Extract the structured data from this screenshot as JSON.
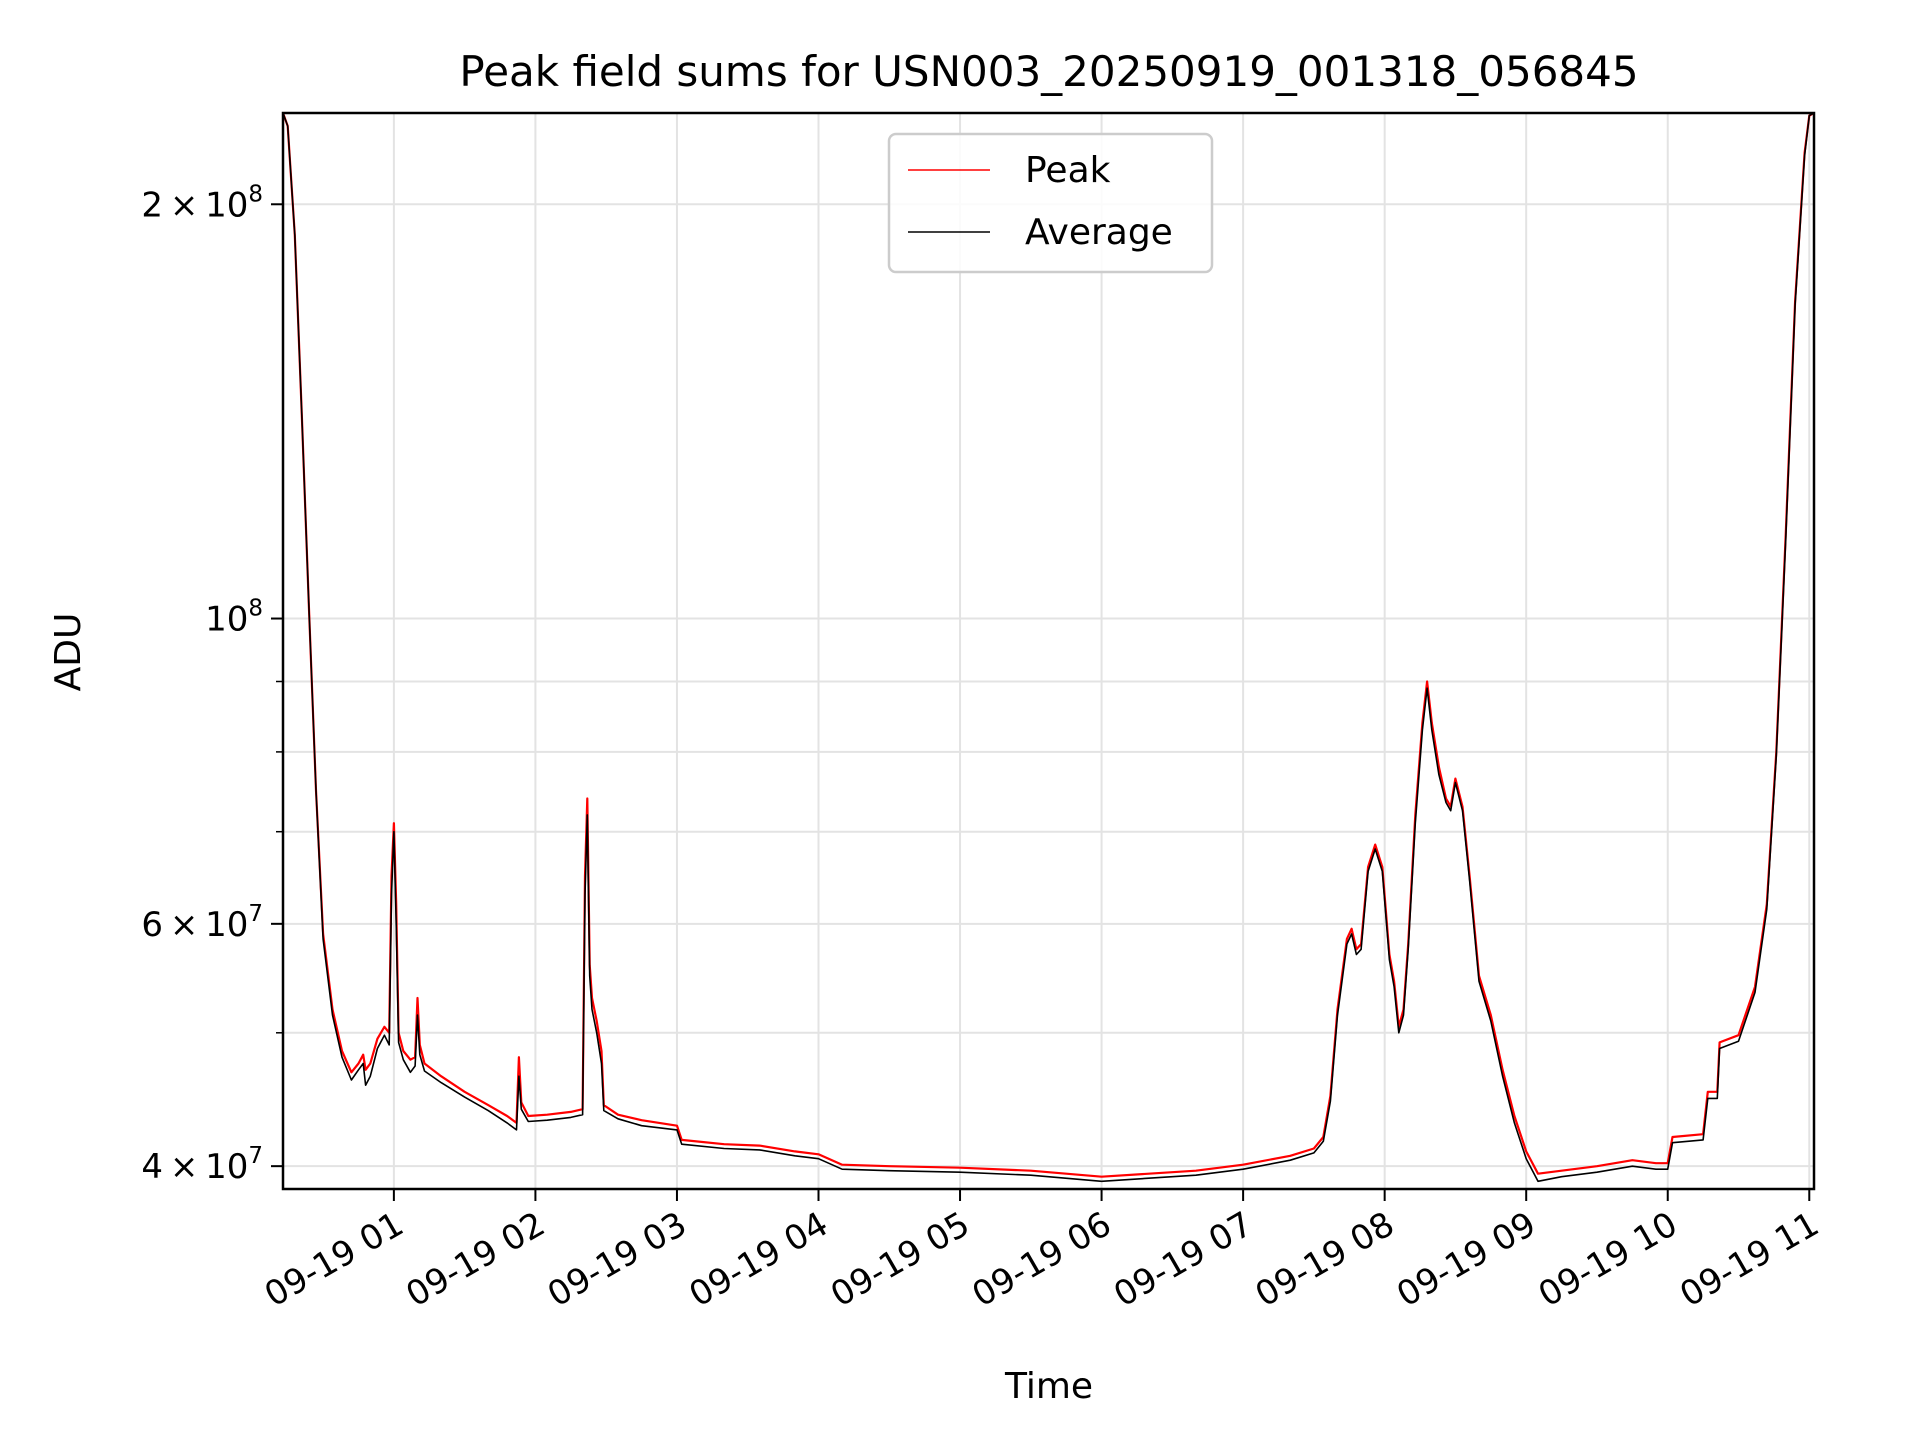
{
  "chart_data": {
    "type": "line",
    "title": "Peak field sums for USN003_20250919_001318_056845",
    "xlabel": "Time",
    "ylabel": "ADU",
    "y_scale": "log",
    "ylim": [
      38500000,
      233000000
    ],
    "xlim": [
      "2025-09-19 00:13",
      "2025-09-19 11:02"
    ],
    "grid": true,
    "legend_position": "upper center",
    "x_ticks": [
      {
        "t": "2025-09-19 01:00",
        "label": "09-19 01"
      },
      {
        "t": "2025-09-19 02:00",
        "label": "09-19 02"
      },
      {
        "t": "2025-09-19 03:00",
        "label": "09-19 03"
      },
      {
        "t": "2025-09-19 04:00",
        "label": "09-19 04"
      },
      {
        "t": "2025-09-19 05:00",
        "label": "09-19 05"
      },
      {
        "t": "2025-09-19 06:00",
        "label": "09-19 06"
      },
      {
        "t": "2025-09-19 07:00",
        "label": "09-19 07"
      },
      {
        "t": "2025-09-19 08:00",
        "label": "09-19 08"
      },
      {
        "t": "2025-09-19 09:00",
        "label": "09-19 09"
      },
      {
        "t": "2025-09-19 10:00",
        "label": "09-19 10"
      },
      {
        "t": "2025-09-19 11:00",
        "label": "09-19 11"
      }
    ],
    "y_major_ticks": [
      {
        "v": 40000000,
        "mant": "4",
        "exp": "7"
      },
      {
        "v": 60000000,
        "mant": "6",
        "exp": "7"
      },
      {
        "v": 100000000,
        "mant": "",
        "exp": "8"
      },
      {
        "v": 200000000,
        "mant": "2",
        "exp": "8"
      }
    ],
    "y_minor_ticks": [
      50000000,
      70000000,
      80000000,
      90000000
    ],
    "series": [
      {
        "name": "Peak",
        "color": "#ff0000",
        "points": [
          [
            "2025-09-19 00:13",
            233000000
          ],
          [
            "2025-09-19 00:15",
            228000000
          ],
          [
            "2025-09-19 00:18",
            190000000
          ],
          [
            "2025-09-19 00:21",
            140000000
          ],
          [
            "2025-09-19 00:24",
            102000000
          ],
          [
            "2025-09-19 00:27",
            75000000
          ],
          [
            "2025-09-19 00:30",
            59000000
          ],
          [
            "2025-09-19 00:34",
            52000000
          ],
          [
            "2025-09-19 00:38",
            48500000
          ],
          [
            "2025-09-19 00:42",
            46800000
          ],
          [
            "2025-09-19 00:45",
            47500000
          ],
          [
            "2025-09-19 00:47",
            48200000
          ],
          [
            "2025-09-19 00:48",
            47000000
          ],
          [
            "2025-09-19 00:50",
            47500000
          ],
          [
            "2025-09-19 00:53",
            49500000
          ],
          [
            "2025-09-19 00:56",
            50500000
          ],
          [
            "2025-09-19 00:58",
            50000000
          ],
          [
            "2025-09-19 00:59",
            65000000
          ],
          [
            "2025-09-19 01:00",
            71000000
          ],
          [
            "2025-09-19 01:01",
            62000000
          ],
          [
            "2025-09-19 01:02",
            50000000
          ],
          [
            "2025-09-19 01:04",
            48500000
          ],
          [
            "2025-09-19 01:07",
            47800000
          ],
          [
            "2025-09-19 01:09",
            48000000
          ],
          [
            "2025-09-19 01:10",
            53000000
          ],
          [
            "2025-09-19 01:11",
            49000000
          ],
          [
            "2025-09-19 01:13",
            47500000
          ],
          [
            "2025-09-19 01:20",
            46500000
          ],
          [
            "2025-09-19 01:30",
            45300000
          ],
          [
            "2025-09-19 01:40",
            44300000
          ],
          [
            "2025-09-19 01:48",
            43500000
          ],
          [
            "2025-09-19 01:52",
            43000000
          ],
          [
            "2025-09-19 01:53",
            48000000
          ],
          [
            "2025-09-19 01:54",
            44500000
          ],
          [
            "2025-09-19 01:57",
            43500000
          ],
          [
            "2025-09-19 02:05",
            43600000
          ],
          [
            "2025-09-19 02:15",
            43800000
          ],
          [
            "2025-09-19 02:20",
            44000000
          ],
          [
            "2025-09-19 02:21",
            65000000
          ],
          [
            "2025-09-19 02:22",
            74000000
          ],
          [
            "2025-09-19 02:23",
            56000000
          ],
          [
            "2025-09-19 02:24",
            53000000
          ],
          [
            "2025-09-19 02:26",
            51000000
          ],
          [
            "2025-09-19 02:28",
            48500000
          ],
          [
            "2025-09-19 02:29",
            44300000
          ],
          [
            "2025-09-19 02:35",
            43600000
          ],
          [
            "2025-09-19 02:45",
            43200000
          ],
          [
            "2025-09-19 03:00",
            42800000
          ],
          [
            "2025-09-19 03:02",
            41800000
          ],
          [
            "2025-09-19 03:20",
            41500000
          ],
          [
            "2025-09-19 03:35",
            41400000
          ],
          [
            "2025-09-19 03:50",
            41000000
          ],
          [
            "2025-09-19 04:00",
            40800000
          ],
          [
            "2025-09-19 04:10",
            40100000
          ],
          [
            "2025-09-19 04:30",
            40000000
          ],
          [
            "2025-09-19 05:00",
            39900000
          ],
          [
            "2025-09-19 05:30",
            39700000
          ],
          [
            "2025-09-19 06:00",
            39300000
          ],
          [
            "2025-09-19 06:20",
            39500000
          ],
          [
            "2025-09-19 06:40",
            39700000
          ],
          [
            "2025-09-19 07:00",
            40100000
          ],
          [
            "2025-09-19 07:20",
            40700000
          ],
          [
            "2025-09-19 07:30",
            41200000
          ],
          [
            "2025-09-19 07:34",
            42000000
          ],
          [
            "2025-09-19 07:37",
            45000000
          ],
          [
            "2025-09-19 07:40",
            52000000
          ],
          [
            "2025-09-19 07:44",
            58500000
          ],
          [
            "2025-09-19 07:46",
            59500000
          ],
          [
            "2025-09-19 07:48",
            57500000
          ],
          [
            "2025-09-19 07:50",
            58000000
          ],
          [
            "2025-09-19 07:53",
            66000000
          ],
          [
            "2025-09-19 07:56",
            68500000
          ],
          [
            "2025-09-19 07:59",
            66000000
          ],
          [
            "2025-09-19 08:02",
            57000000
          ],
          [
            "2025-09-19 08:04",
            54500000
          ],
          [
            "2025-09-19 08:06",
            50500000
          ],
          [
            "2025-09-19 08:08",
            52000000
          ],
          [
            "2025-09-19 08:10",
            58000000
          ],
          [
            "2025-09-19 08:13",
            72000000
          ],
          [
            "2025-09-19 08:16",
            84000000
          ],
          [
            "2025-09-19 08:18",
            90000000
          ],
          [
            "2025-09-19 08:20",
            84000000
          ],
          [
            "2025-09-19 08:23",
            78000000
          ],
          [
            "2025-09-19 08:26",
            74000000
          ],
          [
            "2025-09-19 08:28",
            73000000
          ],
          [
            "2025-09-19 08:30",
            76500000
          ],
          [
            "2025-09-19 08:33",
            73000000
          ],
          [
            "2025-09-19 08:36",
            65000000
          ],
          [
            "2025-09-19 08:40",
            55000000
          ],
          [
            "2025-09-19 08:45",
            51500000
          ],
          [
            "2025-09-19 08:50",
            47000000
          ],
          [
            "2025-09-19 08:55",
            43500000
          ],
          [
            "2025-09-19 09:00",
            41000000
          ],
          [
            "2025-09-19 09:05",
            39500000
          ],
          [
            "2025-09-19 09:15",
            39700000
          ],
          [
            "2025-09-19 09:30",
            40000000
          ],
          [
            "2025-09-19 09:45",
            40400000
          ],
          [
            "2025-09-19 09:55",
            40200000
          ],
          [
            "2025-09-19 10:00",
            40200000
          ],
          [
            "2025-09-19 10:02",
            42000000
          ],
          [
            "2025-09-19 10:15",
            42200000
          ],
          [
            "2025-09-19 10:17",
            45300000
          ],
          [
            "2025-09-19 10:21",
            45300000
          ],
          [
            "2025-09-19 10:22",
            49200000
          ],
          [
            "2025-09-19 10:30",
            49800000
          ],
          [
            "2025-09-19 10:37",
            54000000
          ],
          [
            "2025-09-19 10:42",
            62000000
          ],
          [
            "2025-09-19 10:46",
            80000000
          ],
          [
            "2025-09-19 10:50",
            115000000
          ],
          [
            "2025-09-19 10:54",
            170000000
          ],
          [
            "2025-09-19 10:58",
            218000000
          ],
          [
            "2025-09-19 11:00",
            232000000
          ],
          [
            "2025-09-19 11:02",
            233000000
          ]
        ]
      },
      {
        "name": "Average",
        "color": "#000000",
        "points": [
          [
            "2025-09-19 00:13",
            233000000
          ],
          [
            "2025-09-19 00:15",
            228000000
          ],
          [
            "2025-09-19 00:18",
            190000000
          ],
          [
            "2025-09-19 00:21",
            140000000
          ],
          [
            "2025-09-19 00:24",
            102000000
          ],
          [
            "2025-09-19 00:27",
            75000000
          ],
          [
            "2025-09-19 00:30",
            58500000
          ],
          [
            "2025-09-19 00:34",
            51500000
          ],
          [
            "2025-09-19 00:38",
            48000000
          ],
          [
            "2025-09-19 00:42",
            46200000
          ],
          [
            "2025-09-19 00:45",
            47000000
          ],
          [
            "2025-09-19 00:47",
            47500000
          ],
          [
            "2025-09-19 00:48",
            45800000
          ],
          [
            "2025-09-19 00:50",
            46500000
          ],
          [
            "2025-09-19 00:53",
            48700000
          ],
          [
            "2025-09-19 00:56",
            49800000
          ],
          [
            "2025-09-19 00:58",
            49000000
          ],
          [
            "2025-09-19 00:59",
            63000000
          ],
          [
            "2025-09-19 01:00",
            70000000
          ],
          [
            "2025-09-19 01:01",
            60000000
          ],
          [
            "2025-09-19 01:02",
            49200000
          ],
          [
            "2025-09-19 01:04",
            47800000
          ],
          [
            "2025-09-19 01:07",
            46800000
          ],
          [
            "2025-09-19 01:09",
            47300000
          ],
          [
            "2025-09-19 01:10",
            51500000
          ],
          [
            "2025-09-19 01:11",
            48200000
          ],
          [
            "2025-09-19 01:13",
            46900000
          ],
          [
            "2025-09-19 01:20",
            46000000
          ],
          [
            "2025-09-19 01:30",
            44900000
          ],
          [
            "2025-09-19 01:40",
            43900000
          ],
          [
            "2025-09-19 01:48",
            43000000
          ],
          [
            "2025-09-19 01:52",
            42500000
          ],
          [
            "2025-09-19 01:53",
            46500000
          ],
          [
            "2025-09-19 01:54",
            44000000
          ],
          [
            "2025-09-19 01:57",
            43100000
          ],
          [
            "2025-09-19 02:05",
            43200000
          ],
          [
            "2025-09-19 02:15",
            43400000
          ],
          [
            "2025-09-19 02:20",
            43600000
          ],
          [
            "2025-09-19 02:21",
            63000000
          ],
          [
            "2025-09-19 02:22",
            72000000
          ],
          [
            "2025-09-19 02:23",
            55000000
          ],
          [
            "2025-09-19 02:24",
            52000000
          ],
          [
            "2025-09-19 02:26",
            50000000
          ],
          [
            "2025-09-19 02:28",
            47500000
          ],
          [
            "2025-09-19 02:29",
            43900000
          ],
          [
            "2025-09-19 02:35",
            43300000
          ],
          [
            "2025-09-19 02:45",
            42800000
          ],
          [
            "2025-09-19 03:00",
            42500000
          ],
          [
            "2025-09-19 03:02",
            41500000
          ],
          [
            "2025-09-19 03:20",
            41200000
          ],
          [
            "2025-09-19 03:35",
            41100000
          ],
          [
            "2025-09-19 03:50",
            40700000
          ],
          [
            "2025-09-19 04:00",
            40500000
          ],
          [
            "2025-09-19 04:10",
            39800000
          ],
          [
            "2025-09-19 04:30",
            39700000
          ],
          [
            "2025-09-19 05:00",
            39600000
          ],
          [
            "2025-09-19 05:30",
            39400000
          ],
          [
            "2025-09-19 06:00",
            39000000
          ],
          [
            "2025-09-19 06:20",
            39200000
          ],
          [
            "2025-09-19 06:40",
            39400000
          ],
          [
            "2025-09-19 07:00",
            39800000
          ],
          [
            "2025-09-19 07:20",
            40400000
          ],
          [
            "2025-09-19 07:30",
            40900000
          ],
          [
            "2025-09-19 07:34",
            41700000
          ],
          [
            "2025-09-19 07:37",
            44600000
          ],
          [
            "2025-09-19 07:40",
            51500000
          ],
          [
            "2025-09-19 07:44",
            58000000
          ],
          [
            "2025-09-19 07:46",
            59000000
          ],
          [
            "2025-09-19 07:48",
            57000000
          ],
          [
            "2025-09-19 07:50",
            57500000
          ],
          [
            "2025-09-19 07:53",
            65500000
          ],
          [
            "2025-09-19 07:56",
            68000000
          ],
          [
            "2025-09-19 07:59",
            65500000
          ],
          [
            "2025-09-19 08:02",
            56500000
          ],
          [
            "2025-09-19 08:04",
            54000000
          ],
          [
            "2025-09-19 08:06",
            50000000
          ],
          [
            "2025-09-19 08:08",
            51500000
          ],
          [
            "2025-09-19 08:10",
            57500000
          ],
          [
            "2025-09-19 08:13",
            71000000
          ],
          [
            "2025-09-19 08:16",
            83000000
          ],
          [
            "2025-09-19 08:18",
            89000000
          ],
          [
            "2025-09-19 08:20",
            83000000
          ],
          [
            "2025-09-19 08:23",
            77000000
          ],
          [
            "2025-09-19 08:26",
            73500000
          ],
          [
            "2025-09-19 08:28",
            72500000
          ],
          [
            "2025-09-19 08:30",
            76000000
          ],
          [
            "2025-09-19 08:33",
            72500000
          ],
          [
            "2025-09-19 08:36",
            64500000
          ],
          [
            "2025-09-19 08:40",
            54500000
          ],
          [
            "2025-09-19 08:45",
            51000000
          ],
          [
            "2025-09-19 08:50",
            46500000
          ],
          [
            "2025-09-19 08:55",
            43000000
          ],
          [
            "2025-09-19 09:00",
            40500000
          ],
          [
            "2025-09-19 09:05",
            39000000
          ],
          [
            "2025-09-19 09:15",
            39300000
          ],
          [
            "2025-09-19 09:30",
            39600000
          ],
          [
            "2025-09-19 09:45",
            40000000
          ],
          [
            "2025-09-19 09:55",
            39800000
          ],
          [
            "2025-09-19 10:00",
            39800000
          ],
          [
            "2025-09-19 10:02",
            41600000
          ],
          [
            "2025-09-19 10:15",
            41800000
          ],
          [
            "2025-09-19 10:17",
            44800000
          ],
          [
            "2025-09-19 10:21",
            44800000
          ],
          [
            "2025-09-19 10:22",
            48700000
          ],
          [
            "2025-09-19 10:30",
            49300000
          ],
          [
            "2025-09-19 10:37",
            53500000
          ],
          [
            "2025-09-19 10:42",
            61500000
          ],
          [
            "2025-09-19 10:46",
            79500000
          ],
          [
            "2025-09-19 10:50",
            114000000
          ],
          [
            "2025-09-19 10:54",
            169000000
          ],
          [
            "2025-09-19 10:58",
            217000000
          ],
          [
            "2025-09-19 11:00",
            232000000
          ],
          [
            "2025-09-19 11:02",
            233000000
          ]
        ]
      }
    ]
  }
}
